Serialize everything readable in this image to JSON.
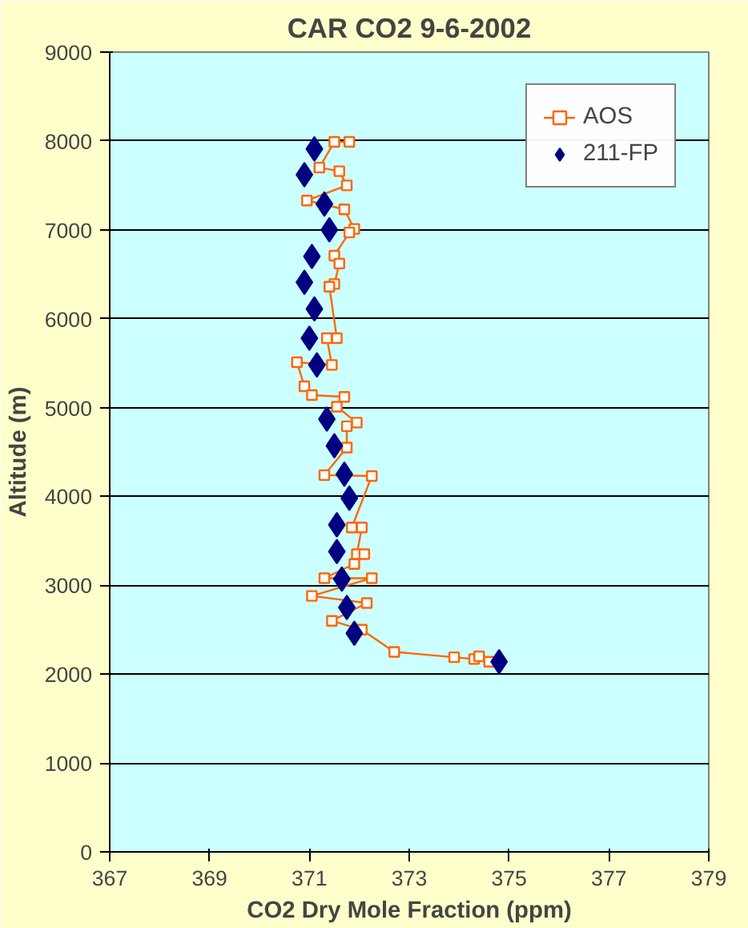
{
  "chart_data": {
    "type": "line",
    "title": "CAR CO2 9-6-2002",
    "xlabel": "CO2 Dry Mole Fraction (ppm)",
    "ylabel": "Altitude (m)",
    "xlim": [
      367,
      379
    ],
    "xticks": [
      367,
      369,
      371,
      373,
      375,
      377,
      379
    ],
    "ylim": [
      0,
      9000
    ],
    "yticks": [
      0,
      1000,
      2000,
      3000,
      4000,
      5000,
      6000,
      7000,
      8000,
      9000
    ],
    "grid": "y",
    "legend": "top right",
    "series": [
      {
        "name": "AOS",
        "marker": "square",
        "color": "#ff6600",
        "x": [
          371.8,
          371.5,
          371.2,
          371.6,
          371.75,
          370.95,
          371.7,
          371.9,
          371.8,
          371.5,
          371.6,
          371.5,
          371.4,
          371.55,
          371.35,
          371.45,
          370.75,
          370.9,
          371.05,
          371.7,
          371.55,
          371.95,
          371.75,
          371.75,
          371.3,
          372.25,
          371.85,
          372.05,
          371.95,
          372.1,
          371.9,
          371.3,
          372.25,
          371.05,
          372.15,
          371.45,
          372.05,
          372.7,
          373.9,
          374.3,
          374.4,
          374.6
        ],
        "values": [
          7990,
          7990,
          7700,
          7660,
          7500,
          7330,
          7230,
          7010,
          6970,
          6710,
          6620,
          6390,
          6360,
          5780,
          5780,
          5480,
          5510,
          5240,
          5140,
          5120,
          5010,
          4830,
          4790,
          4550,
          4240,
          4230,
          3650,
          3650,
          3350,
          3350,
          3240,
          3080,
          3080,
          2880,
          2800,
          2600,
          2500,
          2250,
          2190,
          2170,
          2200,
          2140
        ]
      },
      {
        "name": "211-FP",
        "type": "scatter",
        "marker": "diamond",
        "color": "#000080",
        "x": [
          371.1,
          370.9,
          371.3,
          371.4,
          371.05,
          370.9,
          371.1,
          371.0,
          371.15,
          371.35,
          371.5,
          371.7,
          371.8,
          371.55,
          371.55,
          371.65,
          371.75,
          371.9,
          374.8
        ],
        "values": [
          7910,
          7620,
          7290,
          7000,
          6700,
          6410,
          6110,
          5780,
          5480,
          4870,
          4570,
          4250,
          3980,
          3680,
          3380,
          3070,
          2750,
          2460,
          2140
        ]
      }
    ]
  }
}
